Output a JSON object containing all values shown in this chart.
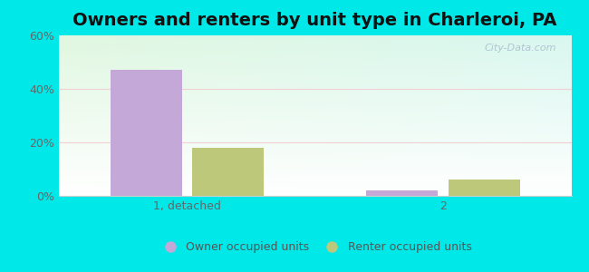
{
  "title": "Owners and renters by unit type in Charleroi, PA",
  "categories": [
    "1, detached",
    "2"
  ],
  "owner_values": [
    47,
    2
  ],
  "renter_values": [
    18,
    6
  ],
  "owner_color": "#c4a8d8",
  "renter_color": "#bec87a",
  "ylim": [
    0,
    60
  ],
  "yticks": [
    0,
    20,
    40,
    60
  ],
  "ytick_labels": [
    "0%",
    "20%",
    "40%",
    "60%"
  ],
  "bar_width": 0.28,
  "x_positions": [
    0.25,
    0.75
  ],
  "background_outer": "#00e8e8",
  "watermark": "City-Data.com",
  "legend_labels": [
    "Owner occupied units",
    "Renter occupied units"
  ],
  "title_fontsize": 14,
  "tick_fontsize": 9,
  "legend_fontsize": 9,
  "grid_color": "#e8f5e8",
  "axis_color": "#cccccc"
}
